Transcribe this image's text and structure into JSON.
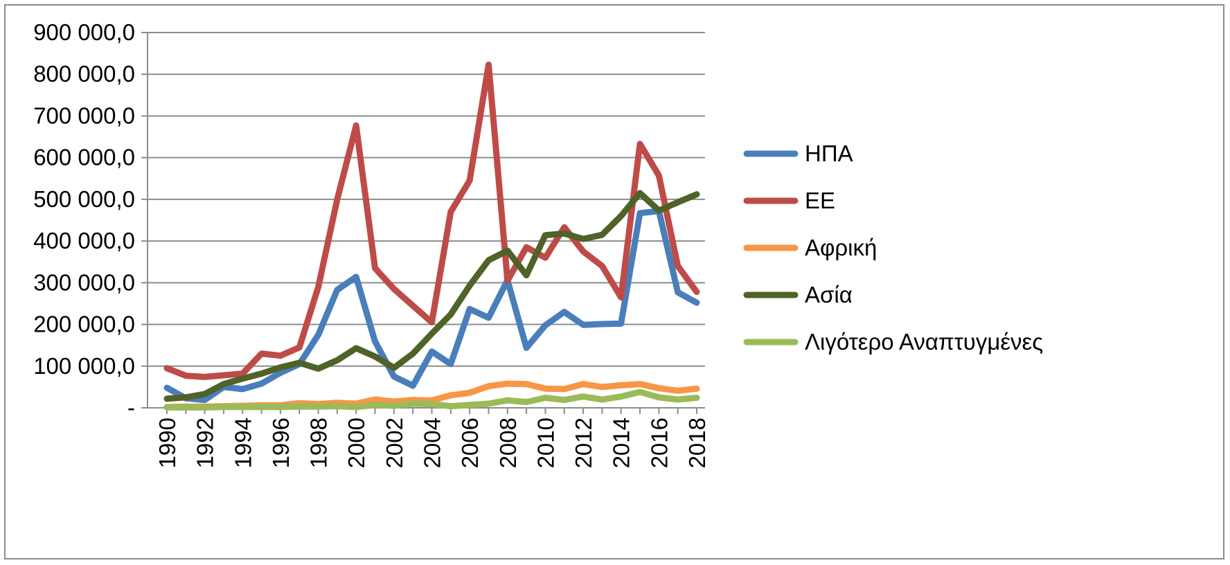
{
  "chart_data": {
    "type": "line",
    "title": "",
    "xlabel": "",
    "ylabel": "",
    "ylim": [
      0,
      900000
    ],
    "y_ticks": [
      0,
      100000,
      200000,
      300000,
      400000,
      500000,
      600000,
      700000,
      800000,
      900000
    ],
    "y_tick_labels": [
      "-",
      "100 000,0",
      "200 000,0",
      "300 000,0",
      "400 000,0",
      "500 000,0",
      "600 000,0",
      "700 000,0",
      "800 000,0",
      "900 000,0"
    ],
    "x": [
      1990,
      1991,
      1992,
      1993,
      1994,
      1995,
      1996,
      1997,
      1998,
      1999,
      2000,
      2001,
      2002,
      2003,
      2004,
      2005,
      2006,
      2007,
      2008,
      2009,
      2010,
      2011,
      2012,
      2013,
      2014,
      2015,
      2016,
      2017,
      2018
    ],
    "x_tick_labels": [
      "1990",
      "1992",
      "1994",
      "1996",
      "1998",
      "2000",
      "2002",
      "2004",
      "2006",
      "2008",
      "2010",
      "2012",
      "2014",
      "2016",
      "2018"
    ],
    "grid": true,
    "legend_position": "right",
    "series": [
      {
        "name": "ΗΠΑ",
        "color": "#4a7ebb",
        "values": [
          48000,
          23000,
          19000,
          50000,
          45000,
          58000,
          84000,
          105000,
          175000,
          283000,
          314000,
          159000,
          75000,
          53000,
          135000,
          105000,
          237000,
          216000,
          306000,
          144000,
          198000,
          230000,
          199000,
          201000,
          202000,
          467000,
          472000,
          277000,
          252000
        ]
      },
      {
        "name": "ΕΕ",
        "color": "#be4b48",
        "values": [
          95000,
          77000,
          74000,
          78000,
          82000,
          130000,
          125000,
          145000,
          290000,
          500000,
          677000,
          335000,
          285000,
          245000,
          205000,
          470000,
          545000,
          823000,
          305000,
          385000,
          360000,
          433000,
          375000,
          340000,
          265000,
          633000,
          557000,
          340000,
          278000
        ]
      },
      {
        "name": "Αφρική",
        "color": "#f79646",
        "values": [
          2000,
          3000,
          3000,
          4000,
          5000,
          6000,
          6000,
          11000,
          9000,
          12000,
          10000,
          20000,
          15000,
          19000,
          18000,
          30000,
          36000,
          52000,
          58000,
          57000,
          46000,
          45000,
          57000,
          50000,
          54000,
          57000,
          47000,
          41000,
          46000
        ]
      },
      {
        "name": "Ασία",
        "color": "#4f6228",
        "values": [
          22000,
          25000,
          33000,
          57000,
          70000,
          82000,
          97000,
          108000,
          94000,
          114000,
          143000,
          123000,
          96000,
          130000,
          178000,
          224000,
          293000,
          354000,
          377000,
          318000,
          414000,
          418000,
          405000,
          415000,
          460000,
          515000,
          473000,
          493000,
          512000
        ]
      },
      {
        "name": "Λιγότερο Αναπτυγμένες",
        "color": "#9bbb59",
        "values": [
          1000,
          1000,
          1000,
          2000,
          2000,
          2000,
          2000,
          3000,
          3000,
          4000,
          2000,
          7000,
          5000,
          10000,
          9000,
          4000,
          7000,
          10000,
          18000,
          14000,
          24000,
          19000,
          27000,
          20000,
          27000,
          38000,
          25000,
          20000,
          24000
        ]
      }
    ]
  }
}
